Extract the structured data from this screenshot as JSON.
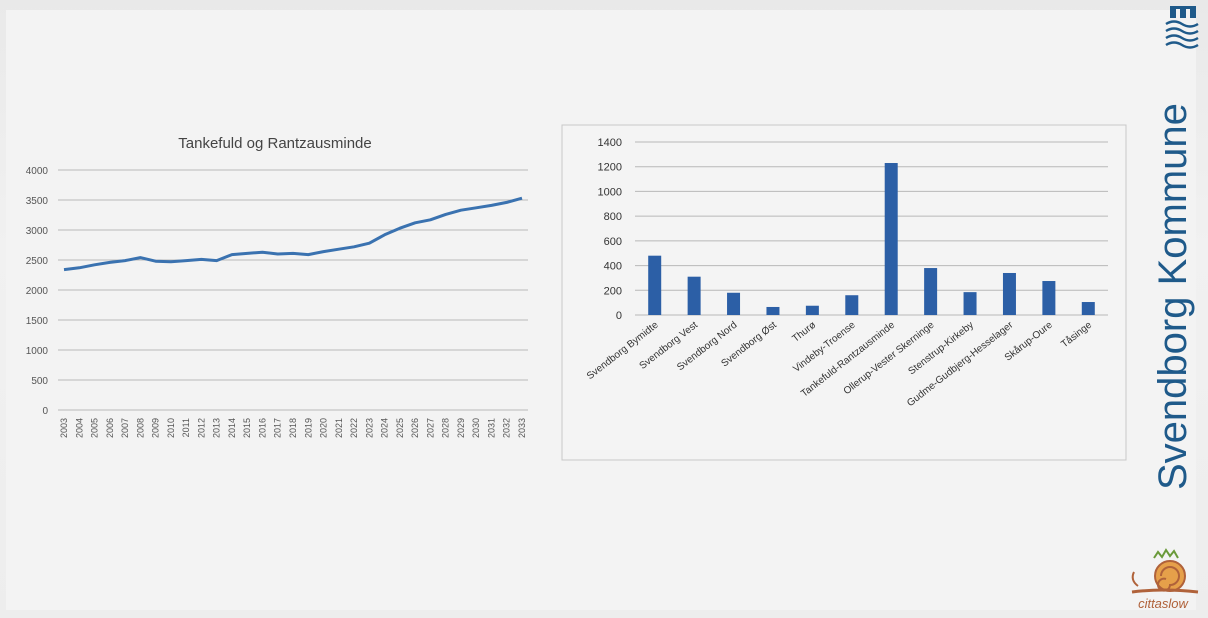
{
  "brand": {
    "name": "Svendborg Kommune",
    "cittaslow_label": "cittaslow"
  },
  "colors": {
    "line": "#3a72b0",
    "bar": "#2c5fa6",
    "grid": "#b8b8b8",
    "brand": "#1f5a8a"
  },
  "chart_data": [
    {
      "type": "line",
      "title": "Tankefuld og Rantzausminde",
      "x": [
        "2003",
        "2004",
        "2005",
        "2006",
        "2007",
        "2008",
        "2009",
        "2010",
        "2011",
        "2012",
        "2013",
        "2014",
        "2015",
        "2016",
        "2017",
        "2018",
        "2019",
        "2020",
        "2021",
        "2022",
        "2023",
        "2024",
        "2025",
        "2026",
        "2027",
        "2028",
        "2029",
        "2030",
        "2031",
        "2032",
        "2033"
      ],
      "series": [
        {
          "values": [
            2340,
            2370,
            2420,
            2460,
            2490,
            2540,
            2480,
            2470,
            2490,
            2510,
            2490,
            2590,
            2610,
            2630,
            2600,
            2610,
            2590,
            2640,
            2680,
            2720,
            2780,
            2920,
            3030,
            3120,
            3170,
            3260,
            3330,
            3370,
            3410,
            3460,
            3530
          ]
        }
      ],
      "ylim": [
        0,
        4000
      ],
      "yticks": [
        0,
        500,
        1000,
        1500,
        2000,
        2500,
        3000,
        3500,
        4000
      ],
      "grid": true,
      "legend": "none"
    },
    {
      "type": "bar",
      "title": "",
      "categories": [
        "Svendborg Bymidte",
        "Svendborg Vest",
        "Svendborg Nord",
        "Svendborg Øst",
        "Thurø",
        "Vindeby-Troense",
        "Tankefuld-Rantzausminde",
        "Ollerup-Vester Skerninge",
        "Stenstrup-Kirkeby",
        "Gudme-Gudbjerg-Hesselager",
        "Skårup-Oure",
        "Tåsinge"
      ],
      "values": [
        480,
        310,
        180,
        65,
        75,
        160,
        1230,
        380,
        185,
        340,
        275,
        105
      ],
      "ylim": [
        0,
        1400
      ],
      "yticks": [
        0,
        200,
        400,
        600,
        800,
        1000,
        1200,
        1400
      ],
      "grid": true,
      "legend": "none"
    }
  ]
}
